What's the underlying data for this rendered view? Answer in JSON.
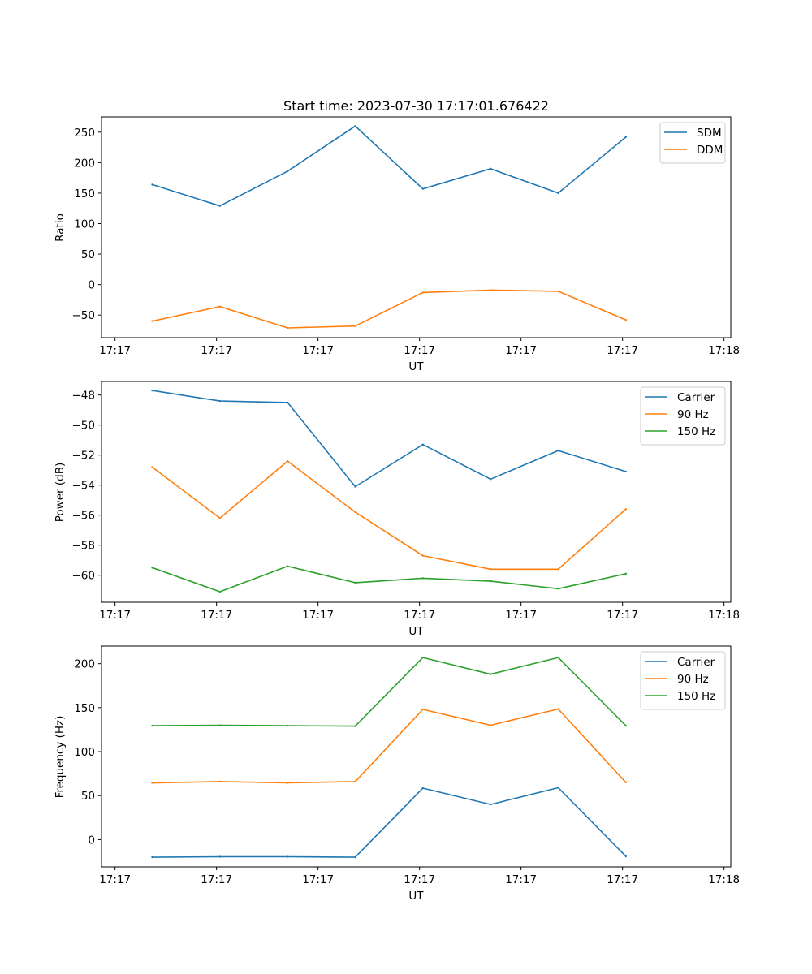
{
  "chart_data": [
    {
      "type": "line",
      "title": "Start time: 2023-07-30 17:17:01.676422",
      "xlabel": "UT",
      "ylabel": "Ratio",
      "x": [
        1,
        2,
        3,
        4,
        5,
        6,
        7,
        8
      ],
      "xlim": [
        0.25,
        9.55
      ],
      "xticks": [
        0.45,
        1.95,
        3.45,
        4.95,
        6.45,
        7.95,
        9.45
      ],
      "xtick_labels": [
        "17:17",
        "17:17",
        "17:17",
        "17:17",
        "17:17",
        "17:17",
        "17:18"
      ],
      "ylim": [
        -87,
        275
      ],
      "yticks": [
        -50,
        0,
        50,
        100,
        150,
        200,
        250
      ],
      "ytick_labels": [
        "−50",
        "0",
        "50",
        "100",
        "150",
        "200",
        "250"
      ],
      "legend_position": "top-right",
      "series": [
        {
          "name": "SDM",
          "color": "#1f77b4",
          "values": [
            164,
            129,
            186,
            260,
            157,
            190,
            150,
            242
          ]
        },
        {
          "name": "DDM",
          "color": "#ff7f0e",
          "values": [
            -60,
            -36,
            -71,
            -68,
            -13,
            -9,
            -11,
            -58
          ]
        }
      ]
    },
    {
      "type": "line",
      "title": "",
      "xlabel": "UT",
      "ylabel": "Power (dB)",
      "x": [
        1,
        2,
        3,
        4,
        5,
        6,
        7,
        8
      ],
      "xlim": [
        0.25,
        9.55
      ],
      "xticks": [
        0.45,
        1.95,
        3.45,
        4.95,
        6.45,
        7.95,
        9.45
      ],
      "xtick_labels": [
        "17:17",
        "17:17",
        "17:17",
        "17:17",
        "17:17",
        "17:17",
        "17:18"
      ],
      "ylim": [
        -61.8,
        -47.1
      ],
      "yticks": [
        -60,
        -58,
        -56,
        -54,
        -52,
        -50,
        -48
      ],
      "ytick_labels": [
        "−60",
        "−58",
        "−56",
        "−54",
        "−52",
        "−50",
        "−48"
      ],
      "legend_position": "top-right",
      "series": [
        {
          "name": "Carrier",
          "color": "#1f77b4",
          "values": [
            -47.7,
            -48.4,
            -48.5,
            -54.1,
            -51.3,
            -53.6,
            -51.7,
            -53.1
          ]
        },
        {
          "name": "90 Hz",
          "color": "#ff7f0e",
          "values": [
            -52.8,
            -56.2,
            -52.4,
            -55.8,
            -58.7,
            -59.6,
            -59.6,
            -55.6
          ]
        },
        {
          "name": "150 Hz",
          "color": "#2ca02c",
          "values": [
            -59.5,
            -61.1,
            -59.4,
            -60.5,
            -60.2,
            -60.4,
            -60.9,
            -59.9
          ]
        }
      ]
    },
    {
      "type": "line",
      "title": "",
      "xlabel": "UT",
      "ylabel": "Frequency (Hz)",
      "x": [
        1,
        2,
        3,
        4,
        5,
        6,
        7,
        8
      ],
      "xlim": [
        0.25,
        9.55
      ],
      "xticks": [
        0.45,
        1.95,
        3.45,
        4.95,
        6.45,
        7.95,
        9.45
      ],
      "xtick_labels": [
        "17:17",
        "17:17",
        "17:17",
        "17:17",
        "17:17",
        "17:17",
        "17:18"
      ],
      "ylim": [
        -31,
        220
      ],
      "yticks": [
        0,
        50,
        100,
        150,
        200
      ],
      "ytick_labels": [
        "0",
        "50",
        "100",
        "150",
        "200"
      ],
      "legend_position": "top-right",
      "series": [
        {
          "name": "Carrier",
          "color": "#1f77b4",
          "values": [
            -20,
            -19.5,
            -19.5,
            -20,
            58.5,
            40,
            59,
            -19
          ]
        },
        {
          "name": "90 Hz",
          "color": "#ff7f0e",
          "values": [
            64.5,
            66,
            64.5,
            66,
            148,
            130,
            148.5,
            65
          ]
        },
        {
          "name": "150 Hz",
          "color": "#2ca02c",
          "values": [
            129.5,
            130,
            129.5,
            129,
            207,
            188,
            207,
            129.5
          ]
        }
      ]
    }
  ]
}
